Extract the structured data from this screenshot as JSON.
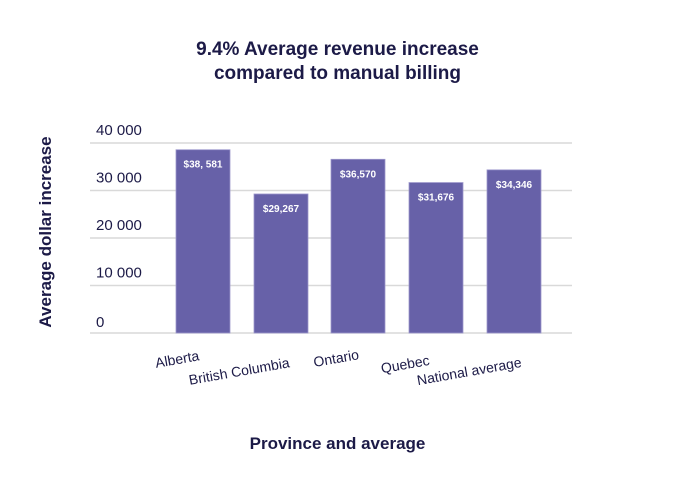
{
  "chart_data": {
    "type": "bar",
    "title_lines": [
      "9.4% Average revenue increase",
      "compared to manual billing"
    ],
    "xlabel": "Province and average",
    "ylabel": "Average dollar increase",
    "categories": [
      "Alberta",
      "British Columbia",
      "Ontario",
      "Quebec",
      "National average"
    ],
    "values": [
      38581,
      29267,
      36570,
      31676,
      34346
    ],
    "data_labels": [
      "$38, 581",
      "$29,267",
      "$36,570",
      "$31,676",
      "$34,346"
    ],
    "yticks": [
      0,
      10000,
      20000,
      30000,
      40000
    ],
    "ytick_labels": [
      "0",
      "10 000",
      "20 000",
      "30 000",
      "40 000"
    ],
    "ylim": [
      0,
      40000
    ],
    "grid": true,
    "legend": "none",
    "colors": {
      "bar": "#6761a8",
      "text": "#1c1a47",
      "grid": "#d9d9d9"
    }
  }
}
